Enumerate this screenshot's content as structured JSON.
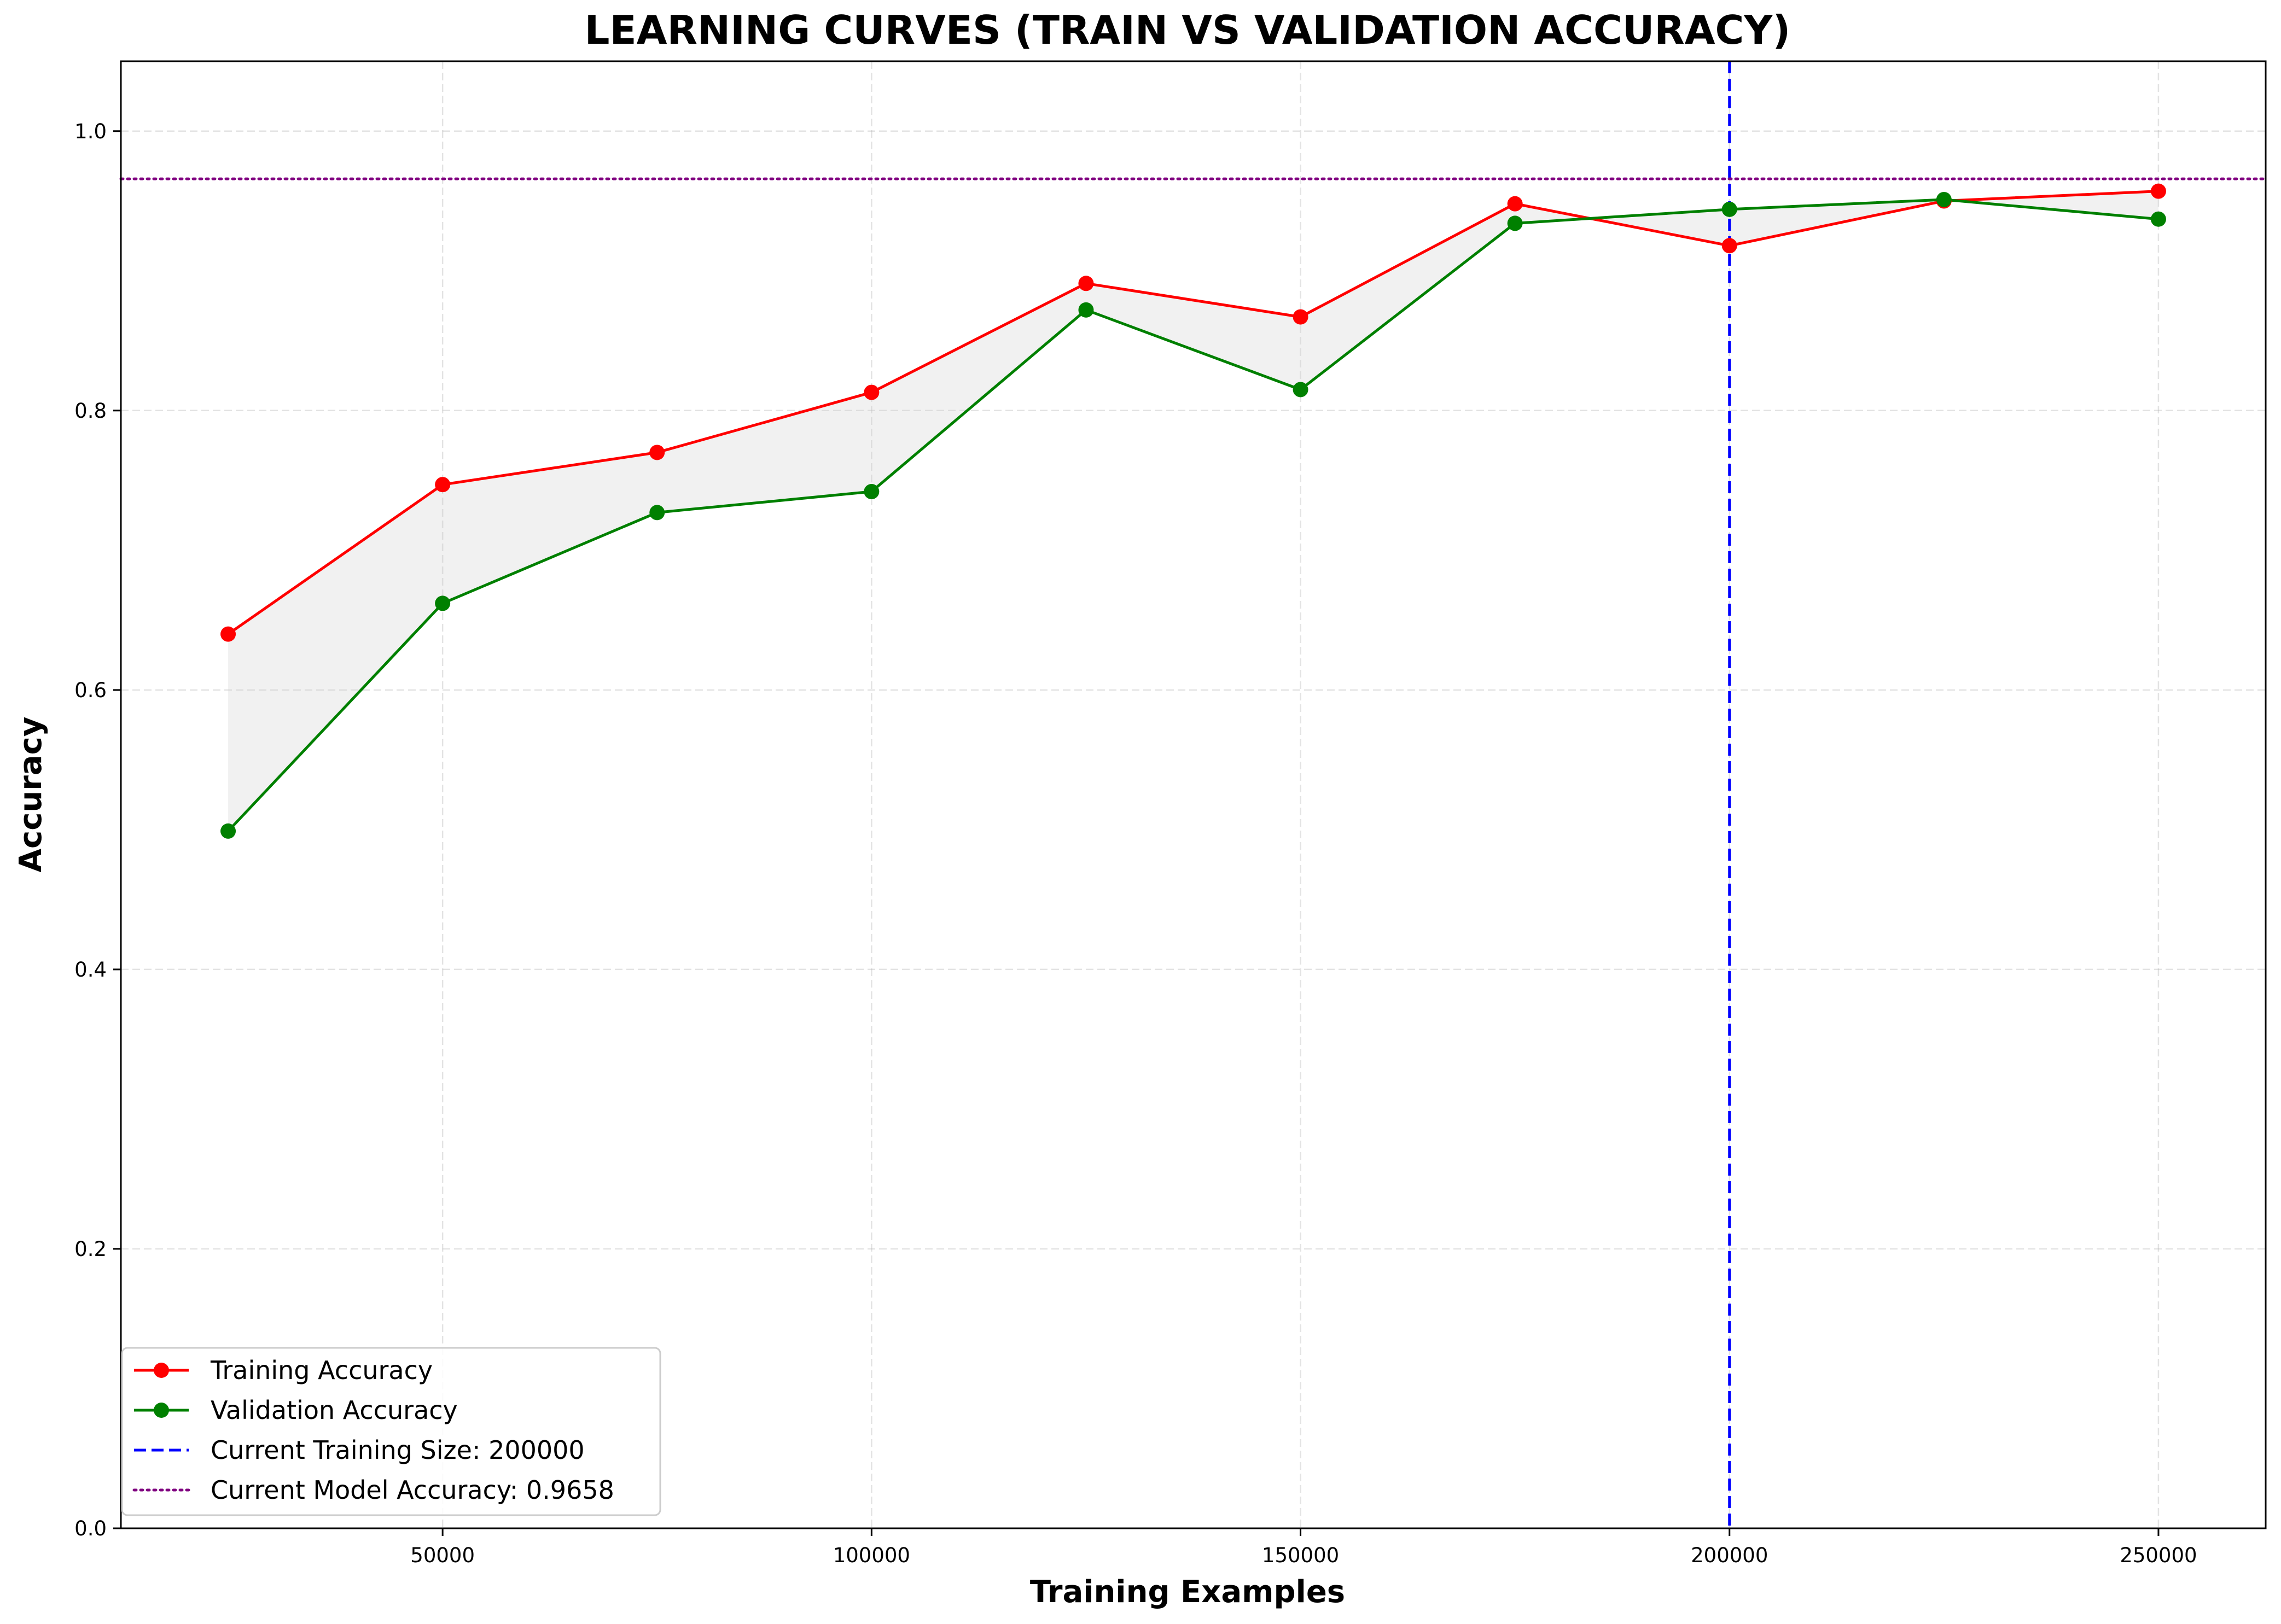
{
  "chart_data": {
    "type": "line",
    "title": "LEARNING CURVES (TRAIN VS VALIDATION ACCURACY)",
    "xlabel": "Training Examples",
    "ylabel": "Accuracy",
    "xlim": [
      12500,
      262500
    ],
    "ylim": [
      0.0,
      1.05
    ],
    "x_ticks": [
      50000,
      100000,
      150000,
      200000,
      250000
    ],
    "y_ticks": [
      0.0,
      0.2,
      0.4,
      0.6,
      0.8,
      1.0
    ],
    "x_tick_labels": [
      "50000",
      "100000",
      "150000",
      "200000",
      "250000"
    ],
    "y_tick_labels": [
      "0.0",
      "0.2",
      "0.4",
      "0.6",
      "0.8",
      "1.0"
    ],
    "grid": true,
    "legend_position": "lower-left",
    "x": [
      25000,
      50000,
      75000,
      100000,
      125000,
      150000,
      175000,
      200000,
      225000,
      250000
    ],
    "series": [
      {
        "name": "Training Accuracy",
        "color": "#ff0000",
        "values": [
          0.64,
          0.747,
          0.77,
          0.813,
          0.891,
          0.867,
          0.948,
          0.918,
          0.95,
          0.957
        ]
      },
      {
        "name": "Validation Accuracy",
        "color": "#008000",
        "values": [
          0.499,
          0.662,
          0.727,
          0.742,
          0.872,
          0.815,
          0.934,
          0.944,
          0.951,
          0.937
        ]
      }
    ],
    "fill_between": {
      "color": "#cccccc"
    },
    "reference_lines": [
      {
        "orientation": "vertical",
        "value": 200000,
        "style": "dashed",
        "color": "#0000ff",
        "label": "Current Training Size: 200000"
      },
      {
        "orientation": "horizontal",
        "value": 0.9658,
        "style": "dotted",
        "color": "#800080",
        "label": "Current Model Accuracy: 0.9658"
      }
    ]
  }
}
